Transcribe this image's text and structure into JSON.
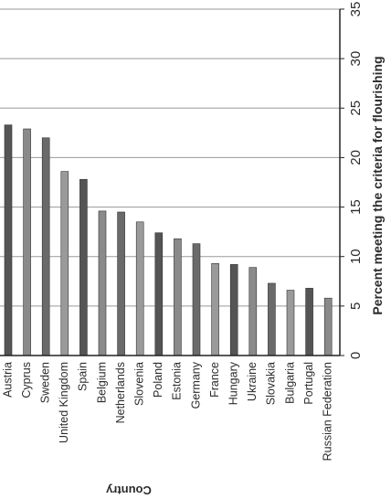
{
  "chart_data": {
    "type": "bar",
    "orientation": "vertical",
    "xlabel": "Country",
    "ylabel": "Percent meeting the criteria for flourishing",
    "ylim": [
      0,
      35
    ],
    "yticks": [
      0,
      5,
      10,
      15,
      20,
      25,
      30,
      35
    ],
    "grid": true,
    "categories": [
      "Austria",
      "Cyprus",
      "Sweden",
      "United Kingdom",
      "Spain",
      "Belgium",
      "Netherlands",
      "Slovenia",
      "Poland",
      "Estonia",
      "Germany",
      "France",
      "Hungary",
      "Ukraine",
      "Slovakia",
      "Bulgaria",
      "Portugal",
      "Russian Federation"
    ],
    "values": [
      23.3,
      22.9,
      22.0,
      18.6,
      17.8,
      14.6,
      14.5,
      13.5,
      12.4,
      11.8,
      11.3,
      9.3,
      9.2,
      8.9,
      7.3,
      6.6,
      6.8,
      5.8
    ]
  }
}
